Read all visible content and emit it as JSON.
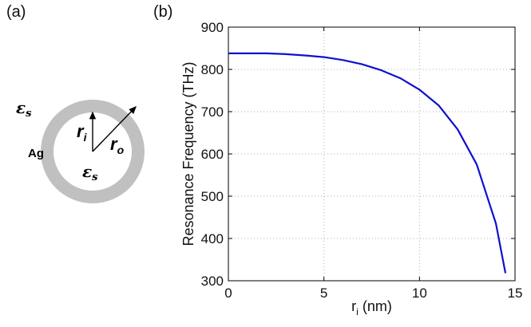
{
  "panels": {
    "a": {
      "label": "(a)"
    },
    "b": {
      "label": "(b)"
    }
  },
  "diagram": {
    "outer_medium": {
      "symbol": "ε",
      "subscript": "s"
    },
    "inner_medium": {
      "symbol": "ε",
      "subscript": "s"
    },
    "shell_label": "Ag",
    "inner_radius": {
      "symbol": "r",
      "subscript": "i"
    },
    "outer_radius": {
      "symbol": "r",
      "subscript": "o"
    },
    "shell_color": "#c0c0c0"
  },
  "chart_data": {
    "type": "line",
    "xlabel": {
      "main": "r",
      "sub": "i",
      "unit": " (nm)"
    },
    "ylabel": "Resonance Frequency (THz)",
    "xlim": [
      0,
      15
    ],
    "ylim": [
      300,
      900
    ],
    "xticks": [
      0,
      5,
      10,
      15
    ],
    "yticks": [
      300,
      400,
      500,
      600,
      700,
      800,
      900
    ],
    "grid": true,
    "line_color": "#1010d0",
    "series": [
      {
        "x": [
          0,
          1,
          2,
          3,
          4,
          5,
          6,
          7,
          8,
          9,
          10,
          11,
          12,
          13,
          14,
          14.5
        ],
        "y": [
          838,
          838,
          838,
          836,
          833,
          829,
          822,
          812,
          798,
          779,
          752,
          715,
          658,
          575,
          435,
          318
        ]
      }
    ]
  }
}
